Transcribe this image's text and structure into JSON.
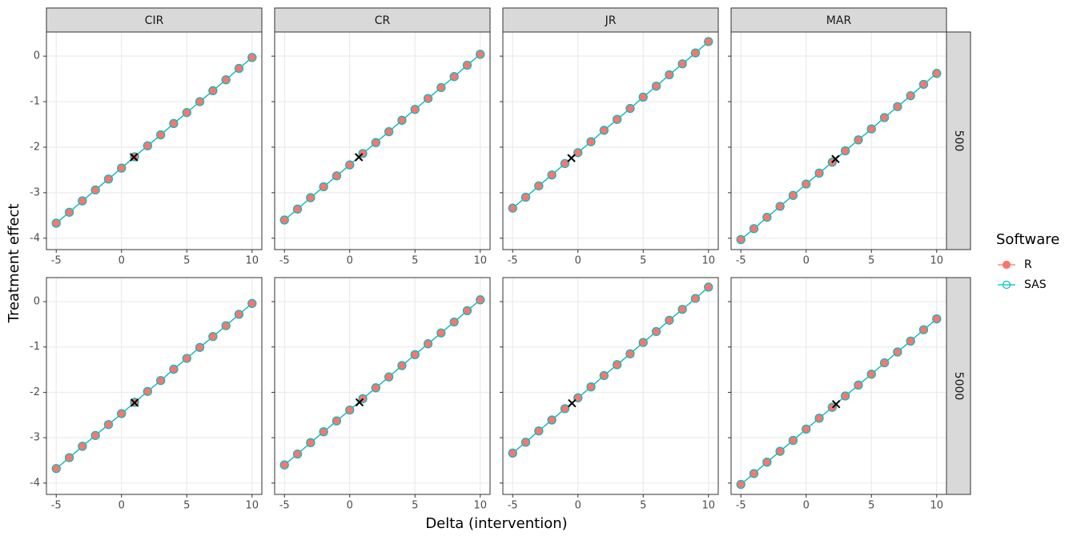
{
  "chart_data": {
    "type": "line",
    "x_label": "Delta (intervention)",
    "y_label": "Treatment effect",
    "legend_title": "Software",
    "legend_position": "right",
    "columns": [
      "CIR",
      "CR",
      "JR",
      "MAR"
    ],
    "rows": [
      "500",
      "5000"
    ],
    "x": [
      -5,
      -4,
      -3,
      -2,
      -1,
      0,
      1,
      2,
      3,
      4,
      5,
      6,
      7,
      8,
      9,
      10
    ],
    "xlim": [
      -5.75,
      10.75
    ],
    "xticks": [
      -5,
      0,
      5,
      10
    ],
    "ylim": [
      -4.25,
      0.53
    ],
    "yticks": [
      -4,
      -3,
      -2,
      -1,
      0
    ],
    "grid": true,
    "series": [
      {
        "name": "R",
        "color": "#f8766d",
        "marker": "filled",
        "values": [
          [
            -3.67,
            -3.43,
            -3.18,
            -2.94,
            -2.7,
            -2.46,
            -2.21,
            -1.97,
            -1.73,
            -1.48,
            -1.24,
            -1.0,
            -0.76,
            -0.52,
            -0.27,
            -0.03
          ],
          [
            -3.6,
            -3.36,
            -3.11,
            -2.87,
            -2.63,
            -2.39,
            -2.14,
            -1.9,
            -1.66,
            -1.41,
            -1.17,
            -0.93,
            -0.69,
            -0.45,
            -0.2,
            0.04
          ],
          [
            -3.34,
            -3.1,
            -2.85,
            -2.61,
            -2.36,
            -2.12,
            -1.88,
            -1.63,
            -1.39,
            -1.15,
            -0.9,
            -0.66,
            -0.41,
            -0.17,
            0.07,
            0.32
          ],
          [
            -4.03,
            -3.79,
            -3.54,
            -3.3,
            -3.06,
            -2.81,
            -2.57,
            -2.33,
            -2.08,
            -1.84,
            -1.6,
            -1.35,
            -1.11,
            -0.87,
            -0.62,
            -0.38
          ],
          [
            -3.68,
            -3.44,
            -3.19,
            -2.95,
            -2.71,
            -2.47,
            -2.22,
            -1.98,
            -1.74,
            -1.49,
            -1.25,
            -1.01,
            -0.77,
            -0.53,
            -0.28,
            -0.04
          ],
          [
            -3.6,
            -3.36,
            -3.11,
            -2.87,
            -2.63,
            -2.39,
            -2.14,
            -1.9,
            -1.66,
            -1.41,
            -1.17,
            -0.93,
            -0.69,
            -0.45,
            -0.2,
            0.04
          ],
          [
            -3.34,
            -3.1,
            -2.85,
            -2.61,
            -2.36,
            -2.12,
            -1.88,
            -1.63,
            -1.39,
            -1.15,
            -0.9,
            -0.66,
            -0.41,
            -0.17,
            0.07,
            0.32
          ],
          [
            -4.03,
            -3.79,
            -3.54,
            -3.3,
            -3.06,
            -2.81,
            -2.57,
            -2.33,
            -2.08,
            -1.84,
            -1.6,
            -1.35,
            -1.11,
            -0.87,
            -0.62,
            -0.38
          ]
        ]
      },
      {
        "name": "SAS",
        "color": "#00bfc4",
        "marker": "open",
        "values": [
          [
            -3.67,
            -3.43,
            -3.18,
            -2.94,
            -2.7,
            -2.46,
            -2.21,
            -1.97,
            -1.73,
            -1.48,
            -1.24,
            -1.0,
            -0.76,
            -0.52,
            -0.27,
            -0.03
          ],
          [
            -3.6,
            -3.36,
            -3.11,
            -2.87,
            -2.63,
            -2.39,
            -2.14,
            -1.9,
            -1.66,
            -1.41,
            -1.17,
            -0.93,
            -0.69,
            -0.45,
            -0.2,
            0.04
          ],
          [
            -3.34,
            -3.1,
            -2.85,
            -2.61,
            -2.36,
            -2.12,
            -1.88,
            -1.63,
            -1.39,
            -1.15,
            -0.9,
            -0.66,
            -0.41,
            -0.17,
            0.07,
            0.32
          ],
          [
            -4.03,
            -3.79,
            -3.54,
            -3.3,
            -3.06,
            -2.81,
            -2.57,
            -2.33,
            -2.08,
            -1.84,
            -1.6,
            -1.35,
            -1.11,
            -0.87,
            -0.62,
            -0.38
          ],
          [
            -3.68,
            -3.44,
            -3.19,
            -2.95,
            -2.71,
            -2.47,
            -2.22,
            -1.98,
            -1.74,
            -1.49,
            -1.25,
            -1.01,
            -0.77,
            -0.53,
            -0.28,
            -0.04
          ],
          [
            -3.6,
            -3.36,
            -3.11,
            -2.87,
            -2.63,
            -2.39,
            -2.14,
            -1.9,
            -1.66,
            -1.41,
            -1.17,
            -0.93,
            -0.69,
            -0.45,
            -0.2,
            0.04
          ],
          [
            -3.34,
            -3.1,
            -2.85,
            -2.61,
            -2.36,
            -2.12,
            -1.88,
            -1.63,
            -1.39,
            -1.15,
            -0.9,
            -0.66,
            -0.41,
            -0.17,
            0.07,
            0.32
          ],
          [
            -4.03,
            -3.79,
            -3.54,
            -3.3,
            -3.06,
            -2.81,
            -2.57,
            -2.33,
            -2.08,
            -1.84,
            -1.6,
            -1.35,
            -1.11,
            -0.87,
            -0.62,
            -0.38
          ]
        ]
      }
    ],
    "crosses": {
      "x": [
        0.95,
        0.7,
        -0.5,
        2.25,
        1.0,
        0.75,
        -0.45,
        2.3
      ],
      "y": [
        -2.22,
        -2.22,
        -2.24,
        -2.26,
        -2.23,
        -2.22,
        -2.24,
        -2.26
      ]
    }
  }
}
